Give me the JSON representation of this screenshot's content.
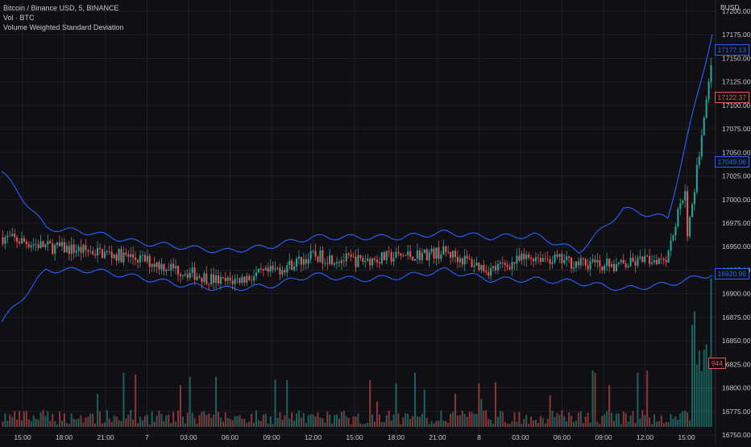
{
  "legend": {
    "line1": "Bitcoin / Binance USD, 5, BINANCE",
    "line2": "Vol · BTC",
    "line3": "Volume Weighted Standard Deviation"
  },
  "axis": {
    "currency": "BUSD",
    "y_ticks": [
      "17200.00",
      "17175.00",
      "17150.00",
      "17125.00",
      "17100.00",
      "17075.00",
      "17050.00",
      "17025.00",
      "17000.00",
      "16975.00",
      "16950.00",
      "16925.00",
      "16900.00",
      "16875.00",
      "16850.00",
      "16825.00",
      "16800.00",
      "16775.00",
      "16750.00"
    ],
    "x_ticks": [
      "15:00",
      "18:00",
      "21:00",
      "7",
      "03:00",
      "06:00",
      "09:00",
      "12:00",
      "15:00",
      "18:00",
      "21:00",
      "8",
      "03:00",
      "06:00",
      "09:00",
      "12:00",
      "15:00"
    ]
  },
  "price_tags": {
    "upper": "17177.13",
    "last": "17122.37",
    "middle": "17049.06",
    "lower": "16920.99",
    "volume": "944"
  },
  "colors": {
    "background": "#0f0f14",
    "up": "#26a69a",
    "down": "#ef5350",
    "band": "#2962ff",
    "grid": "#1c1f26",
    "text": "#c8c9cc"
  },
  "chart_data": {
    "type": "candlestick",
    "symbol": "BTC/BUSD",
    "timeframe": "5",
    "ylim": [
      16750,
      17212
    ],
    "grid": true,
    "x": [
      "15:00",
      "18:00",
      "21:00",
      "7",
      "03:00",
      "06:00",
      "09:00",
      "12:00",
      "15:00",
      "18:00",
      "21:00",
      "8",
      "03:00",
      "06:00",
      "09:00",
      "12:00",
      "15:00"
    ],
    "close": [
      16960,
      16950,
      16945,
      16938,
      16925,
      16912,
      16922,
      16940,
      16935,
      16940,
      16944,
      16925,
      16940,
      16932,
      16930,
      16940,
      17120
    ],
    "band_upper": [
      17030,
      16970,
      16965,
      16955,
      16950,
      16945,
      16950,
      16960,
      16960,
      16960,
      16965,
      16960,
      16962,
      16945,
      16990,
      16980,
      17177
    ],
    "band_lower": [
      16870,
      16925,
      16925,
      16918,
      16910,
      16905,
      16908,
      16920,
      16915,
      16918,
      16925,
      16915,
      16915,
      16912,
      16905,
      16910,
      16921
    ],
    "volume_last": 944
  }
}
